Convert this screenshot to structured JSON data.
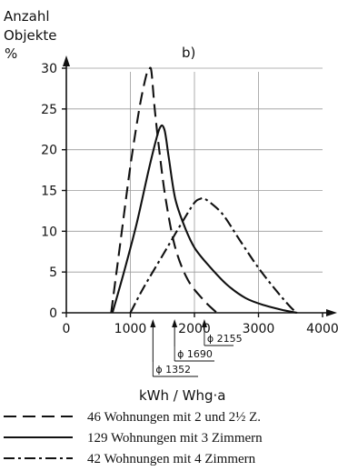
{
  "chart_data": {
    "type": "line",
    "panel_label": "b)",
    "ylabel_lines": [
      "Anzahl",
      "Objekte",
      "%"
    ],
    "xlabel": "kWh / Whg·a",
    "xlim": [
      0,
      4000
    ],
    "ylim": [
      0,
      30
    ],
    "x_ticks": [
      0,
      1000,
      2000,
      3000,
      4000
    ],
    "x_tick_labels": [
      "0",
      "1000",
      "2000",
      "3000",
      "4000"
    ],
    "y_ticks": [
      0,
      5,
      10,
      15,
      20,
      25,
      30
    ],
    "y_tick_labels": [
      "0",
      "5",
      "10",
      "15",
      "20",
      "25",
      "30"
    ],
    "grid": true,
    "series": [
      {
        "name": "46 Wohnungen mit 2 und 2½ Z.",
        "line_style": "dashed",
        "mean_x": 1352,
        "mean_label": "ϕ 1352",
        "x": [
          700,
          850,
          1000,
          1150,
          1260,
          1300,
          1330,
          1380,
          1450,
          1550,
          1700,
          1900,
          2150,
          2350
        ],
        "y": [
          0,
          9,
          18,
          25.5,
          29.5,
          30,
          29.5,
          25,
          20,
          14,
          8,
          4,
          1.5,
          0
        ]
      },
      {
        "name": "129 Wohnungen mit 3 Zimmern",
        "line_style": "solid",
        "mean_x": 1690,
        "mean_label": "ϕ 1690",
        "x": [
          720,
          900,
          1100,
          1300,
          1450,
          1530,
          1600,
          1700,
          1850,
          2000,
          2200,
          2500,
          2800,
          3100,
          3400,
          3600
        ],
        "y": [
          0,
          5,
          11,
          18,
          22.5,
          22.5,
          19,
          14,
          10.5,
          8,
          6,
          3.5,
          1.8,
          0.9,
          0.3,
          0
        ]
      },
      {
        "name": "42 Wohnungen mit 4 Zimmern",
        "line_style": "dashdot",
        "mean_x": 2155,
        "mean_label": "ϕ 2155",
        "x": [
          1000,
          1200,
          1500,
          1800,
          2000,
          2100,
          2150,
          2250,
          2450,
          2700,
          3000,
          3300,
          3500,
          3600
        ],
        "y": [
          0,
          3,
          7,
          11,
          13.5,
          14,
          14,
          13.5,
          12,
          9,
          5.5,
          2.5,
          0.7,
          0
        ]
      }
    ]
  }
}
